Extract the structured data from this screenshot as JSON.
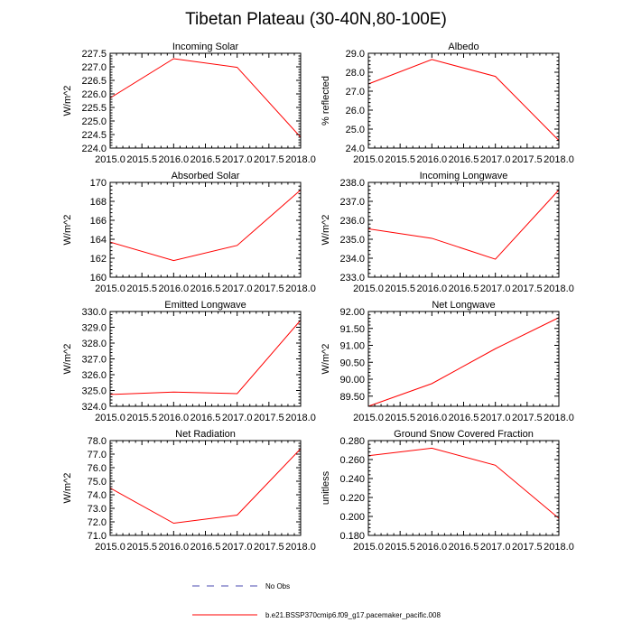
{
  "figure": {
    "title": "Tibetan Plateau (30-40N,80-100E)"
  },
  "colors": {
    "model_line": "#ff0000",
    "obs_line": "#4b4bb0",
    "axes": "#000000",
    "background": "#ffffff"
  },
  "legend": {
    "obs_label": "No Obs",
    "model_label": "b.e21.BSSP370cmip6.f09_g17.pacemaker_pacific.008"
  },
  "chart_data": [
    {
      "type": "line",
      "title": "Incoming Solar",
      "ylabel": "W/m^2",
      "x": [
        2015.0,
        2016.0,
        2017.0,
        2018.0
      ],
      "values": [
        225.85,
        227.3,
        226.98,
        224.4
      ],
      "xlim": [
        2015.0,
        2018.0
      ],
      "ylim": [
        224.0,
        227.5
      ],
      "xticks": [
        2015.0,
        2015.5,
        2016.0,
        2016.5,
        2017.0,
        2017.5,
        2018.0
      ],
      "xtick_labels": [
        "2015.0",
        "2015.5",
        "2016.0",
        "2016.5",
        "2017.0",
        "2017.5",
        "2018.0"
      ],
      "yticks": [
        224.0,
        224.5,
        225.0,
        225.5,
        226.0,
        226.5,
        227.0,
        227.5
      ],
      "ytick_labels": [
        "224.0",
        "224.5",
        "225.0",
        "225.5",
        "226.0",
        "226.5",
        "227.0",
        "227.5"
      ]
    },
    {
      "type": "line",
      "title": "Albedo",
      "ylabel": "% reflected",
      "x": [
        2015.0,
        2016.0,
        2017.0,
        2018.0
      ],
      "values": [
        27.38,
        28.67,
        27.78,
        24.4
      ],
      "xlim": [
        2015.0,
        2018.0
      ],
      "ylim": [
        24.0,
        29.0
      ],
      "xticks": [
        2015.0,
        2015.5,
        2016.0,
        2016.5,
        2017.0,
        2017.5,
        2018.0
      ],
      "xtick_labels": [
        "2015.0",
        "2015.5",
        "2016.0",
        "2016.5",
        "2017.0",
        "2017.5",
        "2018.0"
      ],
      "yticks": [
        24.0,
        25.0,
        26.0,
        27.0,
        28.0,
        29.0
      ],
      "ytick_labels": [
        "24.0",
        "25.0",
        "26.0",
        "27.0",
        "28.0",
        "29.0"
      ]
    },
    {
      "type": "line",
      "title": "Absorbed Solar",
      "ylabel": "W/m^2",
      "x": [
        2015.0,
        2016.0,
        2017.0,
        2018.0
      ],
      "values": [
        163.7,
        161.75,
        163.35,
        169.2
      ],
      "xlim": [
        2015.0,
        2018.0
      ],
      "ylim": [
        160.0,
        170.0
      ],
      "xticks": [
        2015.0,
        2015.5,
        2016.0,
        2016.5,
        2017.0,
        2017.5,
        2018.0
      ],
      "xtick_labels": [
        "2015.0",
        "2015.5",
        "2016.0",
        "2016.5",
        "2017.0",
        "2017.5",
        "2018.0"
      ],
      "yticks": [
        160,
        162,
        164,
        166,
        168,
        170
      ],
      "ytick_labels": [
        "160",
        "162",
        "164",
        "166",
        "168",
        "170"
      ]
    },
    {
      "type": "line",
      "title": "Incoming Longwave",
      "ylabel": "W/m^2",
      "x": [
        2015.0,
        2016.0,
        2017.0,
        2018.0
      ],
      "values": [
        235.55,
        235.05,
        233.95,
        237.6
      ],
      "xlim": [
        2015.0,
        2018.0
      ],
      "ylim": [
        233.0,
        238.0
      ],
      "xticks": [
        2015.0,
        2015.5,
        2016.0,
        2016.5,
        2017.0,
        2017.5,
        2018.0
      ],
      "xtick_labels": [
        "2015.0",
        "2015.5",
        "2016.0",
        "2016.5",
        "2017.0",
        "2017.5",
        "2018.0"
      ],
      "yticks": [
        233.0,
        234.0,
        235.0,
        236.0,
        237.0,
        238.0
      ],
      "ytick_labels": [
        "233.0",
        "234.0",
        "235.0",
        "236.0",
        "237.0",
        "238.0"
      ]
    },
    {
      "type": "line",
      "title": "Emitted Longwave",
      "ylabel": "W/m^2",
      "x": [
        2015.0,
        2016.0,
        2017.0,
        2018.0
      ],
      "values": [
        324.75,
        324.9,
        324.8,
        329.45
      ],
      "xlim": [
        2015.0,
        2018.0
      ],
      "ylim": [
        324.0,
        330.0
      ],
      "xticks": [
        2015.0,
        2015.5,
        2016.0,
        2016.5,
        2017.0,
        2017.5,
        2018.0
      ],
      "xtick_labels": [
        "2015.0",
        "2015.5",
        "2016.0",
        "2016.5",
        "2017.0",
        "2017.5",
        "2018.0"
      ],
      "yticks": [
        324.0,
        325.0,
        326.0,
        327.0,
        328.0,
        329.0,
        330.0
      ],
      "ytick_labels": [
        "324.0",
        "325.0",
        "326.0",
        "327.0",
        "328.0",
        "329.0",
        "330.0"
      ]
    },
    {
      "type": "line",
      "title": "Net Longwave",
      "ylabel": "W/m^2",
      "x": [
        2015.0,
        2016.0,
        2017.0,
        2018.0
      ],
      "values": [
        89.2,
        89.87,
        90.9,
        91.82
      ],
      "xlim": [
        2015.0,
        2018.0
      ],
      "ylim": [
        89.2,
        92.0
      ],
      "xticks": [
        2015.0,
        2015.5,
        2016.0,
        2016.5,
        2017.0,
        2017.5,
        2018.0
      ],
      "xtick_labels": [
        "2015.0",
        "2015.5",
        "2016.0",
        "2016.5",
        "2017.0",
        "2017.5",
        "2018.0"
      ],
      "yticks": [
        89.5,
        90.0,
        90.5,
        91.0,
        91.5,
        92.0
      ],
      "ytick_labels": [
        "89.50",
        "90.00",
        "90.50",
        "91.00",
        "91.50",
        "92.00"
      ]
    },
    {
      "type": "line",
      "title": "Net Radiation",
      "ylabel": "W/m^2",
      "x": [
        2015.0,
        2016.0,
        2017.0,
        2018.0
      ],
      "values": [
        74.5,
        71.9,
        72.5,
        77.4
      ],
      "xlim": [
        2015.0,
        2018.0
      ],
      "ylim": [
        71.0,
        78.0
      ],
      "xticks": [
        2015.0,
        2015.5,
        2016.0,
        2016.5,
        2017.0,
        2017.5,
        2018.0
      ],
      "xtick_labels": [
        "2015.0",
        "2015.5",
        "2016.0",
        "2016.5",
        "2017.0",
        "2017.5",
        "2018.0"
      ],
      "yticks": [
        71.0,
        72.0,
        73.0,
        74.0,
        75.0,
        76.0,
        77.0,
        78.0
      ],
      "ytick_labels": [
        "71.0",
        "72.0",
        "73.0",
        "74.0",
        "75.0",
        "76.0",
        "77.0",
        "78.0"
      ]
    },
    {
      "type": "line",
      "title": "Ground Snow Covered Fraction",
      "ylabel": "unitless",
      "x": [
        2015.0,
        2016.0,
        2017.0,
        2018.0
      ],
      "values": [
        0.264,
        0.272,
        0.254,
        0.198
      ],
      "xlim": [
        2015.0,
        2018.0
      ],
      "ylim": [
        0.18,
        0.28
      ],
      "xticks": [
        2015.0,
        2015.5,
        2016.0,
        2016.5,
        2017.0,
        2017.5,
        2018.0
      ],
      "xtick_labels": [
        "2015.0",
        "2015.5",
        "2016.0",
        "2016.5",
        "2017.0",
        "2017.5",
        "2018.0"
      ],
      "yticks": [
        0.18,
        0.2,
        0.22,
        0.24,
        0.26,
        0.28
      ],
      "ytick_labels": [
        "0.180",
        "0.200",
        "0.220",
        "0.240",
        "0.260",
        "0.280"
      ]
    }
  ]
}
